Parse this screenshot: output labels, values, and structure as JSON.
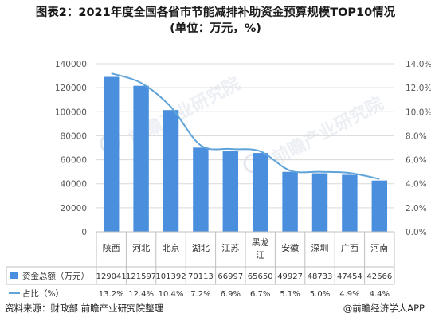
{
  "title": {
    "line1": "图表2：2021年度全国各省市节能减排补助资金预算规模TOP10情况",
    "line2": "(单位：万元，%)"
  },
  "footer": {
    "source": "资料来源：财政部 前瞻产业研究院整理",
    "brand": "@前瞻经济学人APP"
  },
  "watermark": {
    "text": "前瞻产业研究院"
  },
  "colors": {
    "bar": "#4a8fde",
    "line": "#5fa3d9",
    "grid": "#d9d9d9",
    "axis_text": "#595959"
  },
  "chart_data": {
    "type": "bar",
    "categories": [
      "陕西",
      "河北",
      "北京",
      "湖北",
      "江苏",
      "黑龙江",
      "安徽",
      "深圳",
      "广西",
      "河南"
    ],
    "series": [
      {
        "name": "资金总额（万元）",
        "type": "bar",
        "axis": "left",
        "values": [
          129041,
          121597,
          101392,
          70113,
          66997,
          65650,
          49927,
          48733,
          47454,
          42666
        ],
        "labels": [
          "129041",
          "121597",
          "101392",
          "70113",
          "66997",
          "65650",
          "49927",
          "48733",
          "47454",
          "42666"
        ]
      },
      {
        "name": "占比（%）",
        "type": "line",
        "axis": "right",
        "values": [
          13.2,
          12.4,
          10.4,
          7.2,
          6.9,
          6.7,
          5.1,
          5.0,
          4.9,
          4.4
        ],
        "labels": [
          "13.2%",
          "12.4%",
          "10.4%",
          "7.2%",
          "6.9%",
          "6.7%",
          "5.1%",
          "5.0%",
          "4.9%",
          "4.4%"
        ]
      }
    ],
    "y_left": {
      "ylim": [
        0,
        140000
      ],
      "ticks": [
        0,
        20000,
        40000,
        60000,
        80000,
        100000,
        120000,
        140000
      ],
      "tick_labels": [
        "0",
        "20000",
        "40000",
        "60000",
        "80000",
        "100000",
        "120000",
        "140000"
      ]
    },
    "y_right": {
      "ylim": [
        0,
        14
      ],
      "ticks": [
        0,
        2,
        4,
        6,
        8,
        10,
        12,
        14
      ],
      "tick_labels": [
        "0.0%",
        "2.0%",
        "4.0%",
        "6.0%",
        "8.0%",
        "10.0%",
        "12.0%",
        "14.0%"
      ]
    },
    "grid": true,
    "legend": "data-table"
  }
}
